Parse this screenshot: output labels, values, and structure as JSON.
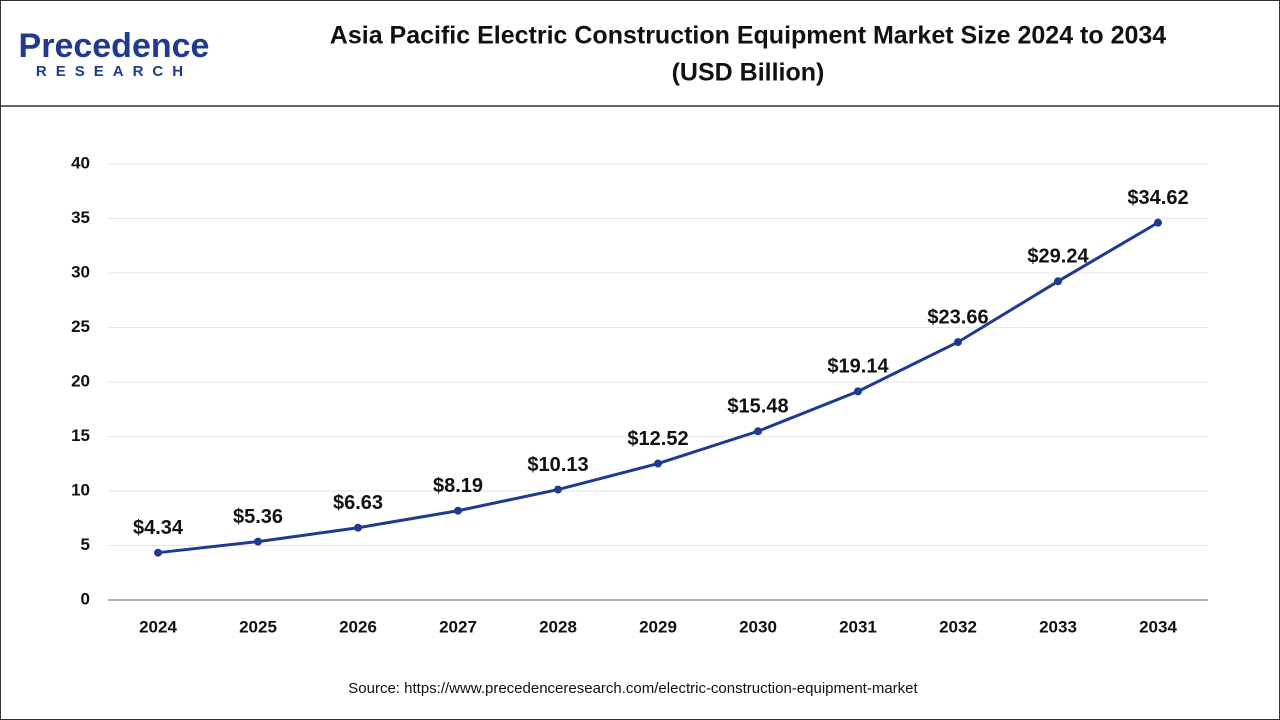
{
  "logo": {
    "name": "Precedence",
    "tagline": "RESEARCH"
  },
  "chart_data": {
    "type": "line",
    "title": "Asia Pacific Electric Construction Equipment Market Size 2024 to 2034",
    "subtitle": "(USD Billion)",
    "categories": [
      "2024",
      "2025",
      "2026",
      "2027",
      "2028",
      "2029",
      "2030",
      "2031",
      "2032",
      "2033",
      "2034"
    ],
    "values": [
      4.34,
      5.36,
      6.63,
      8.19,
      10.13,
      12.52,
      15.48,
      19.14,
      23.66,
      29.24,
      34.62
    ],
    "value_labels": [
      "$4.34",
      "$5.36",
      "$6.63",
      "$8.19",
      "$10.13",
      "$12.52",
      "$15.48",
      "$19.14",
      "$23.66",
      "$29.24",
      "$34.62"
    ],
    "color": "#1f3a8f",
    "ylim": [
      0,
      40
    ],
    "yticks": [
      0,
      5,
      10,
      15,
      20,
      25,
      30,
      35,
      40
    ],
    "grid": true,
    "source": "Source: https://www.precedenceresearch.com/electric-construction-equipment-market"
  }
}
